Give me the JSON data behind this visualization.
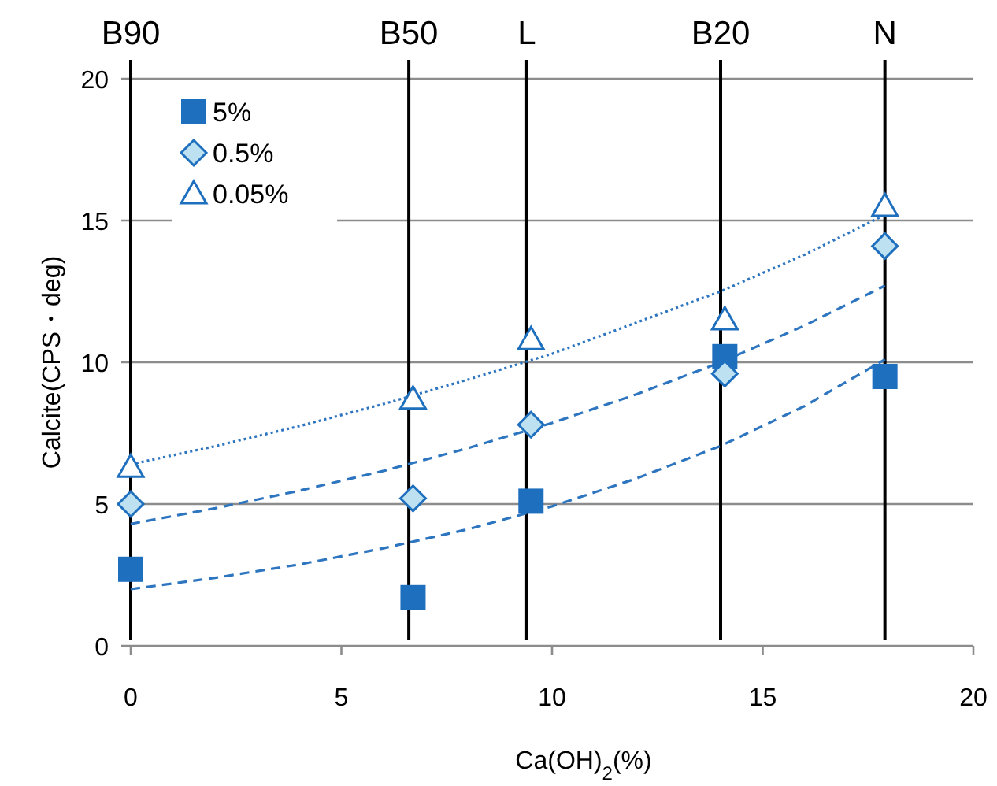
{
  "chart_data": {
    "type": "scatter",
    "xlabel": "Ca(OH)$_{2}$(%)",
    "ylabel": "Calcite(CPS・deg)",
    "x": [
      0,
      6.7,
      9.5,
      14.1,
      17.9
    ],
    "series": [
      {
        "name": "5%",
        "color": "#1f6fbf",
        "marker": "square",
        "values": [
          2.7,
          1.7,
          5.1,
          10.2,
          9.5
        ]
      },
      {
        "name": "0.5%",
        "color": "#1f6fbf",
        "marker": "diamond",
        "values": [
          5.0,
          5.2,
          7.8,
          9.6,
          14.1
        ]
      },
      {
        "name": "0.05%",
        "color": "#1f6fbf",
        "marker": "triangle",
        "values": [
          6.3,
          8.7,
          10.8,
          11.5,
          15.5
        ]
      },
      {
        "type": "line",
        "color": "#2e75c0",
        "line_style": "dashed",
        "x": [
          0,
          2,
          4,
          6,
          8,
          10,
          12,
          14,
          16,
          17.9
        ],
        "values": [
          2.0,
          2.4,
          2.87,
          3.44,
          4.11,
          4.92,
          5.9,
          7.05,
          8.46,
          10.1
        ]
      },
      {
        "type": "line",
        "color": "#2e75c0",
        "line_style": "dashed",
        "x": [
          0,
          2,
          4,
          6,
          8,
          10,
          12,
          14,
          16,
          17.9
        ],
        "values": [
          4.3,
          4.85,
          5.47,
          6.17,
          6.97,
          7.86,
          8.87,
          10.0,
          11.3,
          12.7
        ]
      },
      {
        "type": "line",
        "color": "#2e75c0",
        "line_style": "dotted",
        "x": [
          0,
          2,
          4,
          6,
          8,
          10,
          12,
          14,
          16,
          17.9
        ],
        "values": [
          6.4,
          7.04,
          7.75,
          8.53,
          9.39,
          10.3,
          11.4,
          12.5,
          13.8,
          15.2
        ]
      }
    ],
    "xlim": [
      0,
      20
    ],
    "ylim": [
      0,
      20
    ],
    "xticks": [
      0,
      5,
      10,
      15,
      20
    ],
    "yticks": [
      0,
      5,
      10,
      15,
      20
    ],
    "grid": "y",
    "legend": "top left",
    "ref_lines": [
      {
        "axis": "x",
        "value": 0,
        "label": "B90",
        "color": "#000000"
      },
      {
        "axis": "x",
        "value": 6.6,
        "label": "B50",
        "color": "#000000"
      },
      {
        "axis": "x",
        "value": 9.4,
        "label": "L",
        "color": "#000000"
      },
      {
        "axis": "x",
        "value": 14.0,
        "label": "B20",
        "color": "#000000"
      },
      {
        "axis": "x",
        "value": 17.9,
        "label": "N",
        "color": "#000000"
      }
    ]
  }
}
